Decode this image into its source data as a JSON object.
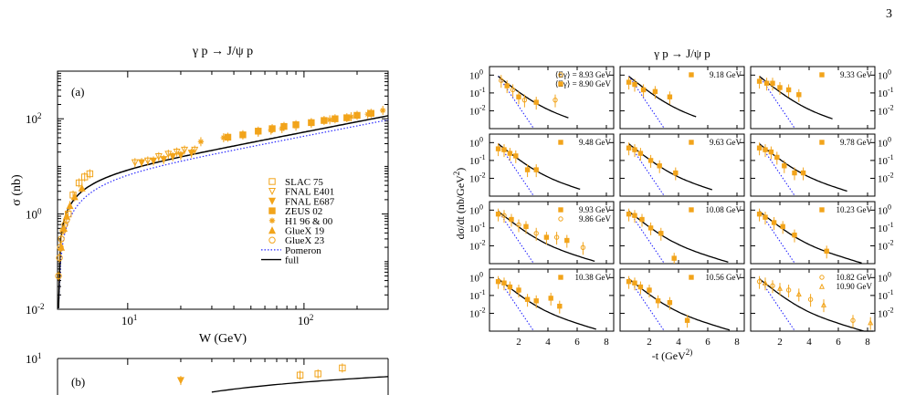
{
  "page_number": "3",
  "colors": {
    "data": "#f2a41b",
    "full": "#000000",
    "pomeron": "#2a2aff"
  },
  "chart_data": [
    {
      "type": "scatter",
      "panel_label": "(a)",
      "title": "γ p → J/ψ p",
      "xlabel": "W (GeV)",
      "ylabel": "σ (nb)",
      "xscale": "log",
      "yscale": "log",
      "xlim": [
        4,
        300
      ],
      "ylim": [
        0.01,
        1000
      ],
      "xticklabels": [
        "10^1",
        "10^2"
      ],
      "yticklabels": [
        "10^-2",
        "10^0",
        "10^2"
      ],
      "legend_position": "center-right",
      "series": [
        {
          "name": "SLAC 75",
          "marker": "open-square",
          "x": [
            4.6,
            4.9,
            5.3,
            5.7,
            6.1
          ],
          "y": [
            1.0,
            2.5,
            4.5,
            6.0,
            7.0
          ]
        },
        {
          "name": "FNAL E401",
          "marker": "open-triangle-down",
          "x": [
            11,
            13,
            15,
            17,
            19,
            21,
            24
          ],
          "y": [
            12,
            13,
            16,
            18,
            20,
            22,
            22
          ]
        },
        {
          "name": "FNAL E687",
          "marker": "filled-triangle-down",
          "x": [
            12,
            14,
            16,
            18,
            20,
            23
          ],
          "y": [
            12,
            13,
            14,
            16,
            17,
            19
          ]
        },
        {
          "name": "ZEUS 02",
          "marker": "filled-square",
          "x": [
            37,
            45,
            55,
            66,
            77,
            90,
            110,
            130,
            150,
            175,
            200,
            240
          ],
          "y": [
            41,
            46,
            55,
            62,
            69,
            75,
            83,
            92,
            100,
            105,
            118,
            130
          ]
        },
        {
          "name": "H1 96 & 00",
          "marker": "star",
          "x": [
            26,
            35,
            45,
            55,
            65,
            75,
            90,
            110,
            140,
            185,
            230,
            280
          ],
          "y": [
            33,
            40,
            46,
            52,
            58,
            62,
            70,
            80,
            95,
            110,
            125,
            150
          ]
        },
        {
          "name": "GlueX 19",
          "marker": "filled-triangle-up",
          "x": [
            4.2,
            4.35,
            4.5,
            4.7,
            5.0,
            5.5
          ],
          "y": [
            0.2,
            0.5,
            0.9,
            1.5,
            2.3,
            3.5
          ]
        },
        {
          "name": "GlueX 23",
          "marker": "open-circle",
          "x": [
            4.05,
            4.1,
            4.15,
            4.2,
            4.3,
            4.4,
            4.5
          ],
          "y": [
            0.05,
            0.12,
            0.2,
            0.3,
            0.45,
            0.6,
            0.75
          ]
        }
      ],
      "curves": [
        {
          "name": "Pomeron",
          "style": "dotted"
        },
        {
          "name": "full",
          "style": "solid"
        }
      ]
    },
    {
      "type": "scatter",
      "panel_label": "(b)",
      "xscale": "log",
      "yscale": "log",
      "xlim": [
        4,
        300
      ],
      "ylim": [
        1,
        10
      ],
      "yticklabels": [
        "10^1"
      ],
      "series": [
        {
          "name": "SLAC 75",
          "marker": "open-square",
          "x": [
            95,
            120,
            165
          ],
          "y": [
            3.5,
            3.8,
            5.5
          ]
        },
        {
          "name": "FNAL E687",
          "marker": "filled-triangle-down",
          "x": [
            20
          ],
          "y": [
            2.5
          ]
        }
      ]
    },
    {
      "type": "scatter",
      "title": "γ p → J/ψ p",
      "xlabel": "-t (GeV^2)",
      "ylabel": "dσ/dt (nb/GeV^2)",
      "xlim": [
        0,
        8.5
      ],
      "ylim": [
        0.001,
        3
      ],
      "yscale": "log",
      "xticklabels": [
        "2",
        "4",
        "6",
        "8"
      ],
      "yticklabels": [
        "10^0",
        "10^-1",
        "10^-2"
      ],
      "grid_layout": "4 rows x 3 columns",
      "panels": [
        {
          "labels": [
            "⟨Eγ⟩ = 8.93 GeV",
            "⟨Eγ⟩ = 8.90 GeV"
          ],
          "markers": [
            "open-circle",
            "filled-square"
          ],
          "tmax": 5.4,
          "points": [
            [
              0.8,
              0.5
            ],
            [
              1.2,
              0.25
            ],
            [
              1.6,
              0.15
            ],
            [
              2.0,
              0.06
            ],
            [
              2.4,
              0.04
            ],
            [
              3.2,
              0.03
            ],
            [
              4.5,
              0.04
            ]
          ]
        },
        {
          "labels": [
            "9.18 GeV"
          ],
          "markers": [
            "filled-square"
          ],
          "tmax": 5.2,
          "points": [
            [
              0.6,
              0.4
            ],
            [
              1.0,
              0.3
            ],
            [
              1.6,
              0.15
            ],
            [
              2.4,
              0.12
            ],
            [
              3.4,
              0.06
            ]
          ]
        },
        {
          "labels": [
            "9.33 GeV"
          ],
          "markers": [
            "filled-square"
          ],
          "tmax": 5.6,
          "points": [
            [
              0.6,
              0.45
            ],
            [
              1.1,
              0.35
            ],
            [
              1.5,
              0.35
            ],
            [
              2.0,
              0.2
            ],
            [
              2.6,
              0.15
            ],
            [
              3.3,
              0.08
            ]
          ]
        },
        {
          "labels": [
            "9.48 GeV"
          ],
          "markers": [
            "filled-square"
          ],
          "tmax": 6.2,
          "points": [
            [
              0.6,
              0.45
            ],
            [
              1.0,
              0.4
            ],
            [
              1.4,
              0.25
            ],
            [
              1.8,
              0.18
            ],
            [
              2.6,
              0.03
            ],
            [
              3.2,
              0.03
            ]
          ]
        },
        {
          "labels": [
            "9.63 GeV"
          ],
          "markers": [
            "filled-square"
          ],
          "tmax": 6.3,
          "points": [
            [
              0.6,
              0.5
            ],
            [
              1.0,
              0.4
            ],
            [
              1.4,
              0.25
            ],
            [
              2.1,
              0.1
            ],
            [
              2.7,
              0.05
            ],
            [
              3.8,
              0.02
            ]
          ]
        },
        {
          "labels": [
            "9.78 GeV"
          ],
          "markers": [
            "filled-square"
          ],
          "tmax": 6.6,
          "points": [
            [
              0.6,
              0.5
            ],
            [
              1.0,
              0.4
            ],
            [
              1.4,
              0.3
            ],
            [
              1.8,
              0.15
            ],
            [
              2.3,
              0.05
            ],
            [
              3.0,
              0.02
            ],
            [
              3.6,
              0.02
            ]
          ]
        },
        {
          "labels": [
            "9.93 GeV",
            "9.86 GeV"
          ],
          "markers": [
            "filled-square",
            "open-circle"
          ],
          "tmax": 7.2,
          "points": [
            [
              0.6,
              0.6
            ],
            [
              1.0,
              0.5
            ],
            [
              1.5,
              0.3
            ],
            [
              2.0,
              0.15
            ],
            [
              2.5,
              0.12
            ],
            [
              3.2,
              0.05
            ],
            [
              3.9,
              0.03
            ],
            [
              4.6,
              0.03
            ],
            [
              5.3,
              0.02
            ],
            [
              6.4,
              0.008
            ]
          ]
        },
        {
          "labels": [
            "10.08 GeV"
          ],
          "markers": [
            "filled-square"
          ],
          "tmax": 7.4,
          "points": [
            [
              0.6,
              0.6
            ],
            [
              1.0,
              0.5
            ],
            [
              1.5,
              0.3
            ],
            [
              2.1,
              0.1
            ],
            [
              2.8,
              0.05
            ],
            [
              3.7,
              0.002
            ]
          ]
        },
        {
          "labels": [
            "10.23 GeV"
          ],
          "markers": [
            "filled-square"
          ],
          "tmax": 7.6,
          "points": [
            [
              0.6,
              0.6
            ],
            [
              1.0,
              0.4
            ],
            [
              1.6,
              0.2
            ],
            [
              2.2,
              0.12
            ],
            [
              3.0,
              0.04
            ],
            [
              5.2,
              0.005
            ]
          ]
        },
        {
          "labels": [
            "10.38 GeV"
          ],
          "markers": [
            "filled-square"
          ],
          "tmax": 7.3,
          "points": [
            [
              0.6,
              0.6
            ],
            [
              1.0,
              0.5
            ],
            [
              1.4,
              0.3
            ],
            [
              2.0,
              0.2
            ],
            [
              2.6,
              0.06
            ],
            [
              3.2,
              0.05
            ],
            [
              4.2,
              0.07
            ],
            [
              4.8,
              0.025
            ]
          ]
        },
        {
          "labels": [
            "10.56 GeV"
          ],
          "markers": [
            "filled-square"
          ],
          "tmax": 7.5,
          "points": [
            [
              0.6,
              0.6
            ],
            [
              1.0,
              0.5
            ],
            [
              1.4,
              0.3
            ],
            [
              2.0,
              0.2
            ],
            [
              2.6,
              0.05
            ],
            [
              3.4,
              0.04
            ],
            [
              4.6,
              0.004
            ]
          ]
        },
        {
          "labels": [
            "10.82 GeV",
            "10.90 GeV"
          ],
          "markers": [
            "open-circle",
            "open-triangle-up"
          ],
          "tmax": 8.4,
          "points": [
            [
              0.6,
              0.6
            ],
            [
              1.0,
              0.5
            ],
            [
              1.5,
              0.35
            ],
            [
              2.0,
              0.25
            ],
            [
              2.6,
              0.2
            ],
            [
              3.3,
              0.12
            ],
            [
              4.1,
              0.06
            ],
            [
              5.0,
              0.03
            ],
            [
              7.0,
              0.004
            ],
            [
              8.2,
              0.003
            ]
          ]
        }
      ]
    }
  ]
}
